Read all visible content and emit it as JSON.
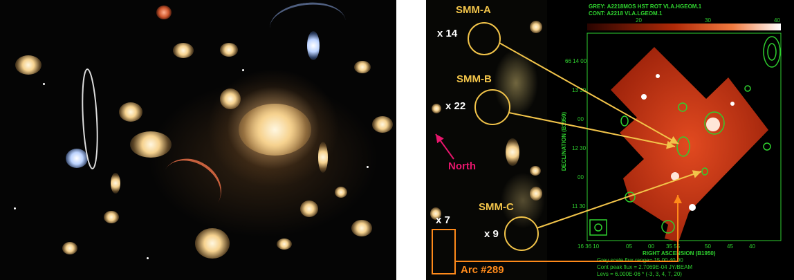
{
  "left_image": {
    "description_icon": "galaxy-cluster-hst-image"
  },
  "right_image": {
    "labels": {
      "smm_a": "SMM-A",
      "smm_b": "SMM-B",
      "smm_c": "SMM-C",
      "mag_a": "x 14",
      "mag_b": "x 22",
      "mag_c": "x 9",
      "mag_arc": "x 7",
      "north": "North",
      "arc": "Arc #289"
    },
    "plot": {
      "header_line1": "GREY: A2218MOS  HST ROT VLA.HGEOM.1",
      "header_line2": "CONT: A2218  VLA.LGEOM.1",
      "colorbar_ticks": [
        "20",
        "30",
        "40"
      ],
      "y_axis_label": "DECLINATION (B1950)",
      "y_ticks": [
        "66 14 00",
        "13 30",
        "00",
        "12 30",
        "00",
        "11 30"
      ],
      "x_ticks": [
        "16 36 10",
        "05",
        "00",
        "35 55",
        "50",
        "45",
        "40"
      ],
      "x_axis_label": "RIGHT ASCENSION (B1950)",
      "footer_line1": "Grey scale flux range= 15.00 40.00",
      "footer_line2": "Cont peak flux =  2.7069E-04 JY/BEAM",
      "footer_line3": "Levs = 6.000E-06 * (-3, 3, 4, 7, 20)"
    },
    "colors": {
      "annotation_yellow": "#f2c44a",
      "north_magenta": "#e8166d",
      "arc_orange": "#ff8a1a",
      "contour_green": "#2fd12f"
    }
  }
}
